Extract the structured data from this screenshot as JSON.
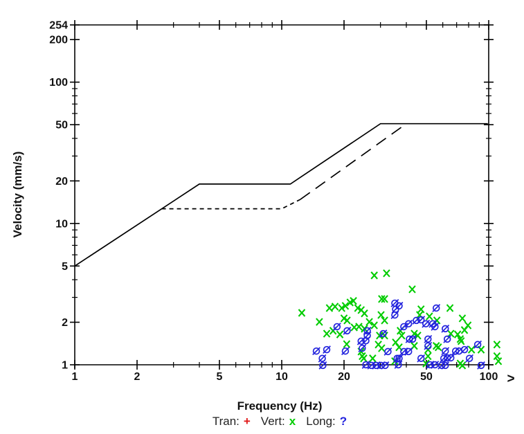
{
  "chart_data": {
    "type": "scatter",
    "xlabel": "Frequency (Hz)",
    "ylabel": "Velocity (mm/s)",
    "x_scale": "log",
    "y_scale": "log",
    "xlim": [
      1,
      100
    ],
    "ylim": [
      1,
      254
    ],
    "grid": false,
    "overflow_indicator": ">",
    "x_ticks_major": [
      {
        "value": 1,
        "label": "1"
      },
      {
        "value": 2,
        "label": "2"
      },
      {
        "value": 5,
        "label": "5"
      },
      {
        "value": 10,
        "label": "10"
      },
      {
        "value": 20,
        "label": "20"
      },
      {
        "value": 50,
        "label": "50"
      },
      {
        "value": 100,
        "label": "100"
      }
    ],
    "x_ticks_minor": [
      3,
      4,
      6,
      7,
      8,
      9,
      30,
      40,
      60,
      70,
      80,
      90
    ],
    "y_ticks_major": [
      {
        "value": 254,
        "label": "254"
      },
      {
        "value": 200,
        "label": "200"
      },
      {
        "value": 100,
        "label": "100"
      },
      {
        "value": 50,
        "label": "50"
      },
      {
        "value": 20,
        "label": "20"
      },
      {
        "value": 10,
        "label": "10"
      },
      {
        "value": 5,
        "label": "5"
      },
      {
        "value": 2,
        "label": "2"
      },
      {
        "value": 1,
        "label": "1"
      }
    ],
    "y_ticks_minor": [
      3,
      4,
      6,
      7,
      8,
      9,
      30,
      40,
      60,
      70,
      80,
      90
    ],
    "limit_lines": [
      {
        "name": "solid-criterion-line",
        "style": "solid",
        "color": "#000000",
        "points": [
          [
            1,
            5
          ],
          [
            4,
            19
          ],
          [
            11,
            19
          ],
          [
            30,
            50.8
          ],
          [
            99,
            50.8
          ]
        ]
      },
      {
        "name": "dashed-criterion-line",
        "style": "dashed",
        "color": "#000000",
        "segments": [
          {
            "dash": "6 5",
            "points": [
              [
                2.63,
                12.7
              ],
              [
                10,
                12.7
              ],
              [
                12.3,
                14.8
              ]
            ]
          },
          {
            "dash": "17 10",
            "points": [
              [
                12.3,
                14.8
              ],
              [
                40,
                50.8
              ]
            ]
          }
        ]
      }
    ],
    "series": [
      {
        "name": "Tran",
        "marker": "plus",
        "color": "#e01818",
        "points": []
      },
      {
        "name": "Vert",
        "marker": "x",
        "color": "#00cc00",
        "points": [
          [
            12.5,
            2.33
          ],
          [
            17.0,
            2.52
          ],
          [
            18.1,
            2.58
          ],
          [
            19.5,
            2.52
          ],
          [
            20.3,
            2.61
          ],
          [
            21.4,
            2.76
          ],
          [
            22.2,
            2.83
          ],
          [
            23.3,
            2.52
          ],
          [
            24.2,
            2.44
          ],
          [
            15.2,
            2.01
          ],
          [
            20.0,
            2.13
          ],
          [
            20.7,
            2.06
          ],
          [
            16.5,
            1.66
          ],
          [
            17.7,
            1.74
          ],
          [
            19.1,
            1.64
          ],
          [
            22.4,
            1.84
          ],
          [
            23.6,
            1.86
          ],
          [
            20.6,
            1.4
          ],
          [
            24.2,
            1.24
          ],
          [
            24.9,
            1.11
          ],
          [
            28.0,
            4.29
          ],
          [
            32.1,
            4.44
          ],
          [
            42.7,
            3.42
          ],
          [
            30.4,
            2.92
          ],
          [
            31.4,
            2.92
          ],
          [
            25.1,
            2.31
          ],
          [
            30.2,
            2.25
          ],
          [
            31.4,
            2.06
          ],
          [
            26.5,
            2.01
          ],
          [
            28.0,
            1.9
          ],
          [
            25.1,
            1.8
          ],
          [
            29.7,
            1.61
          ],
          [
            31.4,
            1.61
          ],
          [
            37.4,
            1.74
          ],
          [
            38.0,
            1.61
          ],
          [
            47.1,
            2.47
          ],
          [
            46.4,
            2.25
          ],
          [
            51.7,
            2.2
          ],
          [
            43.7,
            1.66
          ],
          [
            45.4,
            1.61
          ],
          [
            29.3,
            1.39
          ],
          [
            30.4,
            1.31
          ],
          [
            35.5,
            1.44
          ],
          [
            36.9,
            1.33
          ],
          [
            43.7,
            1.36
          ],
          [
            50.9,
            1.28
          ],
          [
            24.5,
            1.15
          ],
          [
            27.5,
            1.11
          ],
          [
            35.2,
            1.06
          ],
          [
            50.9,
            1.15
          ],
          [
            49.8,
            1.02
          ],
          [
            65.0,
            2.52
          ],
          [
            56.2,
            2.06
          ],
          [
            74.6,
            2.13
          ],
          [
            79.4,
            1.9
          ],
          [
            76.4,
            1.76
          ],
          [
            65.6,
            1.66
          ],
          [
            70.8,
            1.64
          ],
          [
            72.9,
            1.52
          ],
          [
            73.6,
            1.47
          ],
          [
            55.8,
            1.36
          ],
          [
            57.1,
            1.33
          ],
          [
            82.6,
            1.28
          ],
          [
            91.9,
            1.28
          ],
          [
            109.6,
            1.39
          ],
          [
            109.6,
            1.15
          ],
          [
            111.4,
            1.06
          ],
          [
            72.9,
            1.02
          ],
          [
            74.6,
            0.99
          ]
        ]
      },
      {
        "name": "Long",
        "marker": "slashed-circle",
        "color": "#2222dd",
        "points": [
          [
            18.5,
            1.86
          ],
          [
            20.7,
            1.74
          ],
          [
            14.7,
            1.25
          ],
          [
            16.5,
            1.28
          ],
          [
            15.7,
            1.11
          ],
          [
            15.8,
            0.99
          ],
          [
            20.3,
            1.25
          ],
          [
            24.2,
            1.47
          ],
          [
            24.5,
            1.31
          ],
          [
            35.2,
            2.73
          ],
          [
            36.9,
            2.61
          ],
          [
            35.5,
            2.47
          ],
          [
            35.2,
            2.25
          ],
          [
            41.0,
            1.95
          ],
          [
            38.9,
            1.86
          ],
          [
            44.7,
            2.06
          ],
          [
            47.1,
            2.08
          ],
          [
            49.7,
            1.95
          ],
          [
            25.9,
            1.74
          ],
          [
            25.9,
            1.61
          ],
          [
            25.5,
            1.48
          ],
          [
            30.9,
            1.66
          ],
          [
            41.4,
            1.52
          ],
          [
            42.9,
            1.52
          ],
          [
            50.9,
            1.52
          ],
          [
            32.6,
            1.24
          ],
          [
            38.9,
            1.24
          ],
          [
            41.0,
            1.24
          ],
          [
            36.1,
            1.11
          ],
          [
            36.9,
            1.11
          ],
          [
            47.1,
            1.11
          ],
          [
            25.5,
            1.0
          ],
          [
            27.1,
            0.99
          ],
          [
            28.6,
            0.99
          ],
          [
            30.2,
            0.99
          ],
          [
            31.6,
            0.99
          ],
          [
            36.6,
            1.0
          ],
          [
            52.1,
            1.0
          ],
          [
            55.8,
            2.52
          ],
          [
            53.7,
            1.95
          ],
          [
            55.0,
            1.86
          ],
          [
            61.7,
            1.8
          ],
          [
            63.1,
            1.52
          ],
          [
            50.9,
            1.36
          ],
          [
            61.7,
            1.25
          ],
          [
            69.2,
            1.25
          ],
          [
            71.9,
            1.25
          ],
          [
            76.4,
            1.28
          ],
          [
            88.5,
            1.39
          ],
          [
            60.7,
            1.11
          ],
          [
            63.1,
            1.12
          ],
          [
            65.6,
            1.12
          ],
          [
            80.7,
            1.11
          ],
          [
            55.0,
            1.0
          ],
          [
            59.3,
            0.99
          ],
          [
            61.7,
            0.99
          ],
          [
            91.9,
            0.99
          ]
        ]
      }
    ],
    "legend": [
      {
        "label": "Tran:",
        "symbol": "+",
        "color": "#e01818"
      },
      {
        "label": "Vert:",
        "symbol": "x",
        "color": "#00cc00"
      },
      {
        "label": "Long:",
        "symbol": "?",
        "color": "#2222dd"
      }
    ]
  }
}
